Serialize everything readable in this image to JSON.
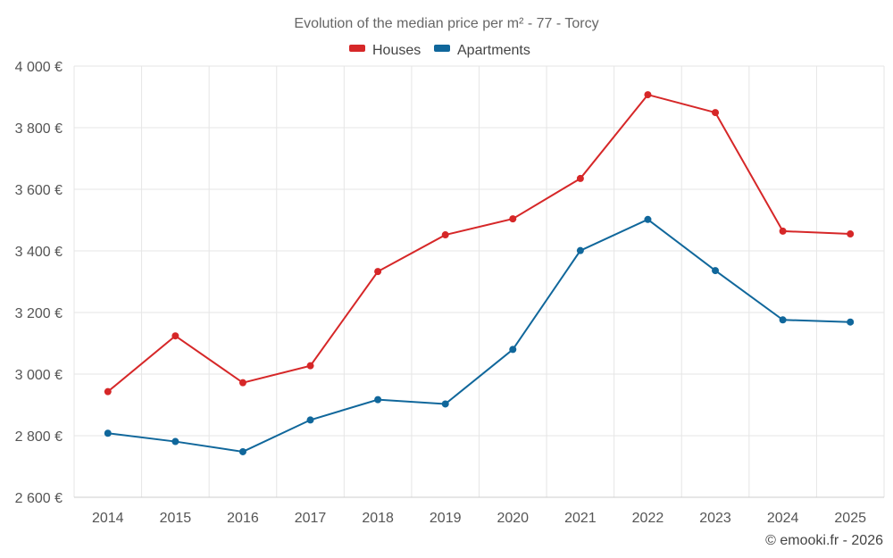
{
  "chart_data": {
    "type": "line",
    "title": "Evolution of the median price per m² - 77 - Torcy",
    "categories": [
      "2014",
      "2015",
      "2016",
      "2017",
      "2018",
      "2019",
      "2020",
      "2021",
      "2022",
      "2023",
      "2024",
      "2025"
    ],
    "series": [
      {
        "name": "Houses",
        "color": "#d62728",
        "values": [
          2943,
          3124,
          2972,
          3027,
          3333,
          3452,
          3504,
          3635,
          3907,
          3849,
          3464,
          3455
        ]
      },
      {
        "name": "Apartments",
        "color": "#10679b",
        "values": [
          2808,
          2781,
          2748,
          2851,
          2917,
          2903,
          3080,
          3401,
          3502,
          3336,
          3176,
          3169
        ]
      }
    ],
    "ylim": [
      2600,
      4000
    ],
    "yticks": [
      2600,
      2800,
      3000,
      3200,
      3400,
      3600,
      3800,
      4000
    ],
    "ytick_labels": [
      "2 600 €",
      "2 800 €",
      "3 000 €",
      "3 200 €",
      "3 400 €",
      "3 600 €",
      "3 800 €",
      "4 000 €"
    ],
    "xlabel": "",
    "ylabel": "",
    "grid": true,
    "legend_position": "top-center"
  },
  "credit": "© emooki.fr - 2026"
}
